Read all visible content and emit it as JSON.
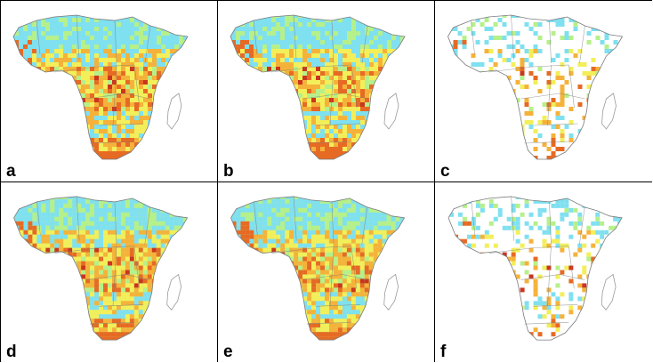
{
  "figure": {
    "panels": [
      {
        "label": "a",
        "style": "dense",
        "seed": 1
      },
      {
        "label": "b",
        "style": "dense",
        "seed": 2
      },
      {
        "label": "c",
        "style": "sparse",
        "seed": 3
      },
      {
        "label": "d",
        "style": "dense",
        "seed": 4
      },
      {
        "label": "e",
        "style": "dense",
        "seed": 5
      },
      {
        "label": "f",
        "style": "sparse",
        "seed": 6
      }
    ],
    "colors": {
      "low": "#7fe0f0",
      "mid_low": "#b6f08a",
      "mid": "#f2ef5a",
      "mid_high": "#f5b23a",
      "high": "#e66a24",
      "peak": "#c9361e",
      "outline": "#7b7b7b",
      "madagascar": "#9a9a9a"
    }
  }
}
